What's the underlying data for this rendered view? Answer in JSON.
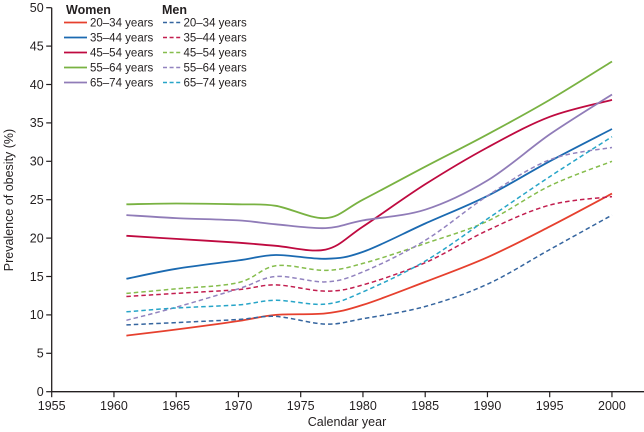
{
  "figure": {
    "y_axis": {
      "label": "Prevalence of obesity (%)",
      "min": 0,
      "max": 50,
      "step": 5,
      "tick_labels": [
        "0",
        "5",
        "10",
        "15",
        "20",
        "25",
        "30",
        "35",
        "40",
        "45",
        "50"
      ]
    },
    "x_axis": {
      "label": "Calendar year",
      "min": 1955,
      "max": 2000,
      "step": 5,
      "tick_labels": [
        "1955",
        "1960",
        "1965",
        "1970",
        "1975",
        "1980",
        "1985",
        "1990",
        "1995",
        "2000"
      ]
    },
    "legend": {
      "position": "top-left",
      "women_title": "Women",
      "men_title": "Men"
    },
    "axis_color": "#231f20"
  },
  "chart_data": {
    "type": "line",
    "title": "",
    "xlabel": "Calendar year",
    "ylabel": "Prevalence of obesity (%)",
    "xlim": [
      1955,
      2002
    ],
    "ylim": [
      0,
      50
    ],
    "grid": false,
    "legend_position": "top-left",
    "x": [
      1961,
      1965,
      1970,
      1973,
      1977,
      1980,
      1985,
      1990,
      1995,
      2000
    ],
    "series": [
      {
        "name": "women-20-34",
        "group": "Women",
        "label": "20–34 years",
        "color": "#e6402e",
        "dash": "solid",
        "values": [
          7.3,
          8.1,
          9.2,
          10.0,
          10.2,
          11.3,
          14.3,
          17.5,
          21.5,
          25.8
        ]
      },
      {
        "name": "women-35-44",
        "group": "Women",
        "label": "35–44 years",
        "color": "#1b6ab1",
        "dash": "solid",
        "values": [
          14.7,
          16.0,
          17.1,
          17.8,
          17.3,
          18.2,
          21.9,
          25.5,
          30.0,
          34.2
        ]
      },
      {
        "name": "women-45-54",
        "group": "Women",
        "label": "45–54 years",
        "color": "#bf0a40",
        "dash": "solid",
        "values": [
          20.3,
          19.9,
          19.4,
          19.0,
          18.5,
          21.5,
          27.0,
          31.8,
          35.8,
          38.0
        ]
      },
      {
        "name": "women-55-64",
        "group": "Women",
        "label": "55–64 years",
        "color": "#79b242",
        "dash": "solid",
        "values": [
          24.4,
          24.5,
          24.4,
          24.2,
          22.6,
          25.0,
          29.3,
          33.5,
          38.0,
          43.0
        ]
      },
      {
        "name": "women-65-74",
        "group": "Women",
        "label": "65–74 years",
        "color": "#907cb8",
        "dash": "solid",
        "values": [
          23.0,
          22.6,
          22.3,
          21.8,
          21.3,
          22.3,
          23.7,
          27.5,
          33.5,
          38.7
        ]
      },
      {
        "name": "men-20-34",
        "group": "Men",
        "label": "20–34 years",
        "color": "#35659f",
        "dash": "dashed",
        "values": [
          8.7,
          9.0,
          9.4,
          9.8,
          8.8,
          9.5,
          11.1,
          14.0,
          18.5,
          23.0
        ]
      },
      {
        "name": "men-35-44",
        "group": "Men",
        "label": "35–44 years",
        "color": "#c21e4f",
        "dash": "dashed",
        "values": [
          12.4,
          12.8,
          13.3,
          13.9,
          13.1,
          13.9,
          16.8,
          21.0,
          24.3,
          25.4
        ]
      },
      {
        "name": "men-45-54",
        "group": "Men",
        "label": "45–54 years",
        "color": "#86bd4d",
        "dash": "dashed",
        "values": [
          12.8,
          13.4,
          14.2,
          16.4,
          15.8,
          16.7,
          19.3,
          22.2,
          26.8,
          30.0
        ]
      },
      {
        "name": "men-55-64",
        "group": "Men",
        "label": "55–64 years",
        "color": "#9283bf",
        "dash": "dashed",
        "values": [
          9.3,
          11.0,
          13.4,
          15.0,
          14.3,
          15.6,
          19.7,
          25.5,
          30.2,
          31.8
        ]
      },
      {
        "name": "men-65-74",
        "group": "Men",
        "label": "65–74 years",
        "color": "#27a5c8",
        "dash": "dashed",
        "values": [
          10.4,
          10.9,
          11.3,
          11.9,
          11.4,
          13.0,
          17.0,
          22.5,
          28.0,
          33.2
        ]
      }
    ]
  }
}
